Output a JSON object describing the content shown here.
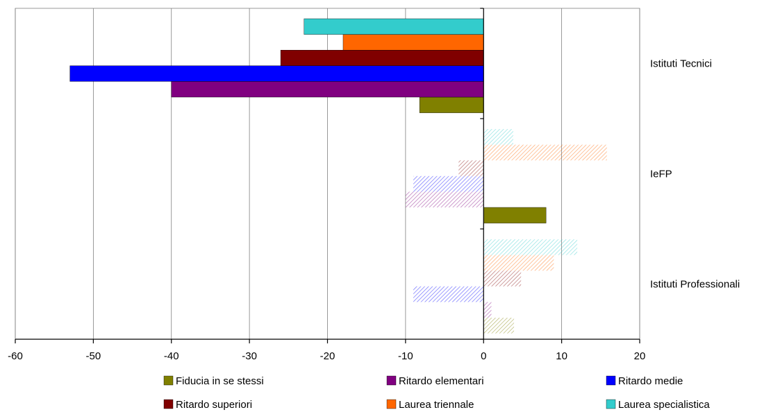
{
  "chart_data": {
    "type": "bar",
    "orientation": "horizontal",
    "categories": [
      "Istituti Tecnici",
      "IeFP",
      "Istituti Professionali"
    ],
    "series": [
      {
        "name": "Fiducia in se stessi",
        "color": "#808000",
        "values": [
          -8.2,
          8.0,
          3.9
        ]
      },
      {
        "name": "Ritardo elementari",
        "color": "#800080",
        "values": [
          -40.0,
          -10.0,
          1.0
        ]
      },
      {
        "name": "Ritardo medie",
        "color": "#0000ff",
        "values": [
          -53.0,
          -9.0,
          -9.0
        ]
      },
      {
        "name": "Ritardo superiori",
        "color": "#800000",
        "values": [
          -26.0,
          -3.2,
          4.8
        ]
      },
      {
        "name": "Laurea triennale",
        "color": "#ff6600",
        "values": [
          -18.0,
          15.8,
          9.0
        ]
      },
      {
        "name": "Laurea specialistica",
        "color": "#33cccc",
        "values": [
          -23.0,
          3.8,
          12.0
        ]
      }
    ],
    "faded_categories": [
      "IeFP",
      "Istituti Professionali"
    ],
    "faded_exceptions": [
      {
        "category": "IeFP",
        "series": "Fiducia in se stessi"
      }
    ],
    "xlim": [
      -60,
      20
    ],
    "xticks": [
      -60,
      -50,
      -40,
      -30,
      -20,
      -10,
      0,
      10,
      20
    ],
    "xlabel": "",
    "ylabel": "",
    "title": "",
    "grid": "vertical",
    "legend_position": "bottom"
  }
}
